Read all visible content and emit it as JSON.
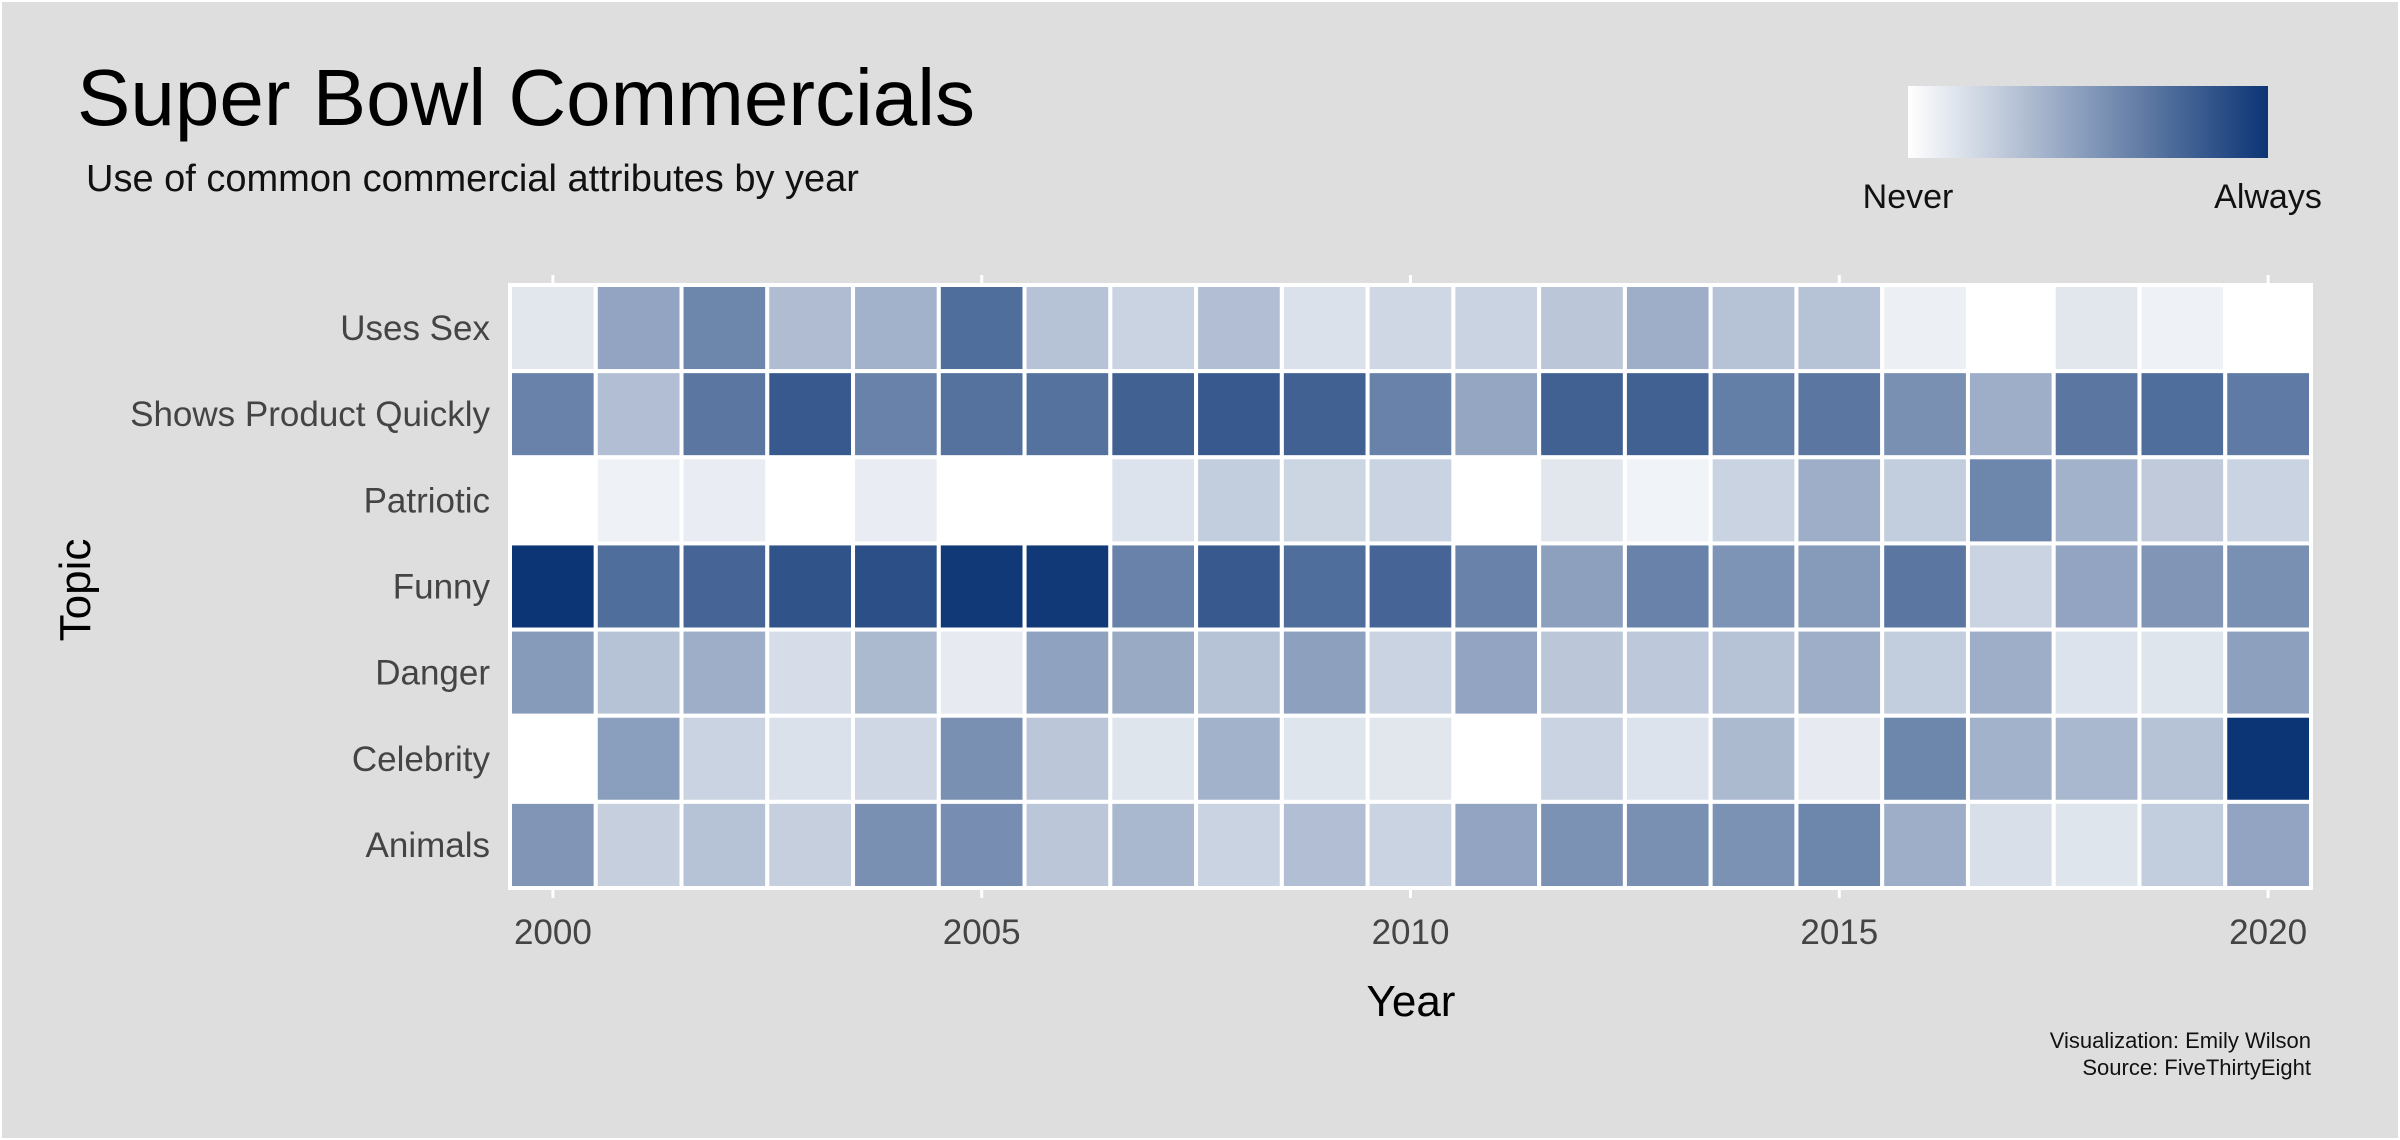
{
  "chart_data": {
    "type": "heatmap",
    "title": "Super Bowl Commercials",
    "subtitle": "Use of common commercial attributes by year",
    "xlabel": "Year",
    "ylabel": "Topic",
    "x": [
      2000,
      2001,
      2002,
      2003,
      2004,
      2005,
      2006,
      2007,
      2008,
      2009,
      2010,
      2011,
      2012,
      2013,
      2014,
      2015,
      2016,
      2017,
      2018,
      2019,
      2020
    ],
    "x_ticks": [
      "2000",
      "2005",
      "2010",
      "2015",
      "2020"
    ],
    "y": [
      "Uses Sex",
      "Shows Product Quickly",
      "Patriotic",
      "Funny",
      "Danger",
      "Celebrity",
      "Animals"
    ],
    "values": [
      [
        0.12,
        0.45,
        0.6,
        0.33,
        0.38,
        0.72,
        0.3,
        0.22,
        0.32,
        0.15,
        0.2,
        0.22,
        0.28,
        0.4,
        0.3,
        0.3,
        0.08,
        0.0,
        0.12,
        0.07,
        0.0
      ],
      [
        0.62,
        0.32,
        0.68,
        0.82,
        0.62,
        0.7,
        0.7,
        0.78,
        0.82,
        0.78,
        0.62,
        0.44,
        0.78,
        0.78,
        0.64,
        0.68,
        0.55,
        0.4,
        0.68,
        0.72,
        0.66
      ],
      [
        0.0,
        0.07,
        0.09,
        0.0,
        0.09,
        0.0,
        0.0,
        0.14,
        0.25,
        0.21,
        0.22,
        0.0,
        0.12,
        0.06,
        0.22,
        0.4,
        0.25,
        0.6,
        0.38,
        0.26,
        0.22
      ],
      [
        1.0,
        0.72,
        0.76,
        0.85,
        0.87,
        0.98,
        0.98,
        0.62,
        0.82,
        0.72,
        0.76,
        0.62,
        0.47,
        0.62,
        0.53,
        0.5,
        0.68,
        0.22,
        0.45,
        0.52,
        0.55
      ],
      [
        0.5,
        0.3,
        0.4,
        0.17,
        0.34,
        0.1,
        0.46,
        0.42,
        0.3,
        0.47,
        0.22,
        0.45,
        0.28,
        0.27,
        0.3,
        0.4,
        0.25,
        0.4,
        0.14,
        0.13,
        0.47
      ],
      [
        0.0,
        0.48,
        0.22,
        0.15,
        0.2,
        0.55,
        0.28,
        0.13,
        0.38,
        0.13,
        0.12,
        0.0,
        0.22,
        0.14,
        0.34,
        0.1,
        0.6,
        0.38,
        0.35,
        0.3,
        1.0
      ],
      [
        0.52,
        0.24,
        0.3,
        0.24,
        0.55,
        0.56,
        0.28,
        0.35,
        0.22,
        0.32,
        0.22,
        0.45,
        0.54,
        0.55,
        0.54,
        0.6,
        0.4,
        0.16,
        0.13,
        0.25,
        0.45
      ]
    ],
    "scale": {
      "low_label": "Never",
      "high_label": "Always",
      "low_color": "#FFFFFF",
      "high_color": "#0C3575"
    },
    "legend_position": "top-right",
    "grid": true
  },
  "caption": {
    "line1": "Visualization: Emily Wilson",
    "line2": "Source: FiveThirtyEight"
  },
  "colors": {
    "background": "#DEDEDE",
    "tile_border": "#FFFFFF",
    "grid": "#FFFFFF"
  }
}
